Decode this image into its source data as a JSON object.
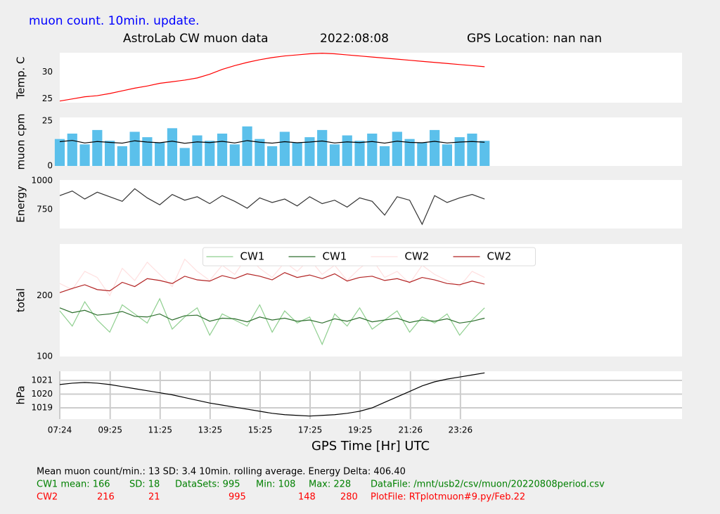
{
  "header": {
    "note": "muon count.  10min. update.",
    "title": "AstroLab CW muon data",
    "date": "2022:08:08",
    "location": "GPS Location: nan   nan"
  },
  "chart_data": [
    {
      "type": "line",
      "ylabel": "Temp. C",
      "xlim": [
        7.4,
        32.3
      ],
      "ylim": [
        24.3,
        33.6
      ],
      "yticks": [
        25,
        30
      ],
      "x": [
        7.4,
        7.9,
        8.4,
        8.9,
        9.4,
        9.9,
        10.4,
        10.9,
        11.4,
        11.9,
        12.4,
        12.9,
        13.4,
        13.9,
        14.4,
        14.9,
        15.4,
        15.9,
        16.4,
        16.9,
        17.4,
        17.9,
        18.4,
        18.9,
        19.4,
        19.9,
        20.4,
        20.9,
        21.4,
        21.9,
        22.4,
        22.9,
        23.4,
        23.9,
        24.4
      ],
      "series": [
        {
          "color": "#ff0000",
          "values": [
            24.6,
            25.0,
            25.4,
            25.6,
            26.0,
            26.5,
            27.0,
            27.4,
            27.9,
            28.2,
            28.5,
            28.9,
            29.6,
            30.5,
            31.2,
            31.8,
            32.3,
            32.7,
            33.0,
            33.2,
            33.4,
            33.5,
            33.4,
            33.2,
            33.0,
            32.8,
            32.6,
            32.4,
            32.2,
            32.0,
            31.8,
            31.6,
            31.4,
            31.2,
            31.0
          ]
        }
      ]
    },
    {
      "type": "bar",
      "ylabel": "muon cpm",
      "xlim": [
        7.4,
        32.3
      ],
      "ylim": [
        0,
        27
      ],
      "yticks": [
        0,
        25
      ],
      "x": [
        7.4,
        7.9,
        8.4,
        8.9,
        9.4,
        9.9,
        10.4,
        10.9,
        11.4,
        11.9,
        12.4,
        12.9,
        13.4,
        13.9,
        14.4,
        14.9,
        15.4,
        15.9,
        16.4,
        16.9,
        17.4,
        17.9,
        18.4,
        18.9,
        19.4,
        19.9,
        20.4,
        20.9,
        21.4,
        21.9,
        22.4,
        22.9,
        23.4,
        23.9,
        24.4
      ],
      "series": [
        {
          "type": "bar",
          "color": "#5bc0eb",
          "values": [
            15,
            18,
            12,
            20,
            14,
            11,
            19,
            16,
            13,
            21,
            10,
            17,
            14,
            18,
            12,
            22,
            15,
            11,
            19,
            13,
            16,
            20,
            12,
            17,
            14,
            18,
            11,
            19,
            15,
            13,
            20,
            12,
            16,
            18,
            14
          ]
        },
        {
          "type": "line",
          "color": "#000000",
          "values": [
            13.5,
            14.2,
            12.8,
            13.6,
            13.1,
            12.7,
            14.0,
            13.3,
            12.9,
            13.8,
            12.6,
            13.4,
            13.0,
            13.7,
            12.8,
            14.1,
            13.2,
            12.7,
            13.5,
            12.9,
            13.3,
            13.9,
            12.8,
            13.4,
            13.0,
            13.6,
            12.7,
            13.8,
            13.1,
            12.9,
            13.7,
            12.8,
            13.3,
            13.6,
            13.2
          ]
        }
      ]
    },
    {
      "type": "line",
      "ylabel": "Energy",
      "xlim": [
        7.4,
        32.3
      ],
      "ylim": [
        583,
        1006
      ],
      "yticks": [
        750,
        1000
      ],
      "x": [
        7.4,
        7.9,
        8.4,
        8.9,
        9.4,
        9.9,
        10.4,
        10.9,
        11.4,
        11.9,
        12.4,
        12.9,
        13.4,
        13.9,
        14.4,
        14.9,
        15.4,
        15.9,
        16.4,
        16.9,
        17.4,
        17.9,
        18.4,
        18.9,
        19.4,
        19.9,
        20.4,
        20.9,
        21.4,
        21.9,
        22.4,
        22.9,
        23.4,
        23.9,
        24.4
      ],
      "series": [
        {
          "color": "#333333",
          "values": [
            870,
            910,
            840,
            900,
            860,
            820,
            930,
            850,
            790,
            880,
            830,
            860,
            800,
            870,
            820,
            760,
            850,
            810,
            840,
            780,
            860,
            800,
            830,
            770,
            850,
            820,
            700,
            860,
            830,
            620,
            870,
            810,
            850,
            880,
            840
          ]
        }
      ]
    },
    {
      "type": "line",
      "ylabel": "total",
      "xlim": [
        7.4,
        32.3
      ],
      "ylim": [
        100,
        285
      ],
      "yticks": [
        100,
        200
      ],
      "legend": "upper center",
      "x": [
        7.4,
        7.9,
        8.4,
        8.9,
        9.4,
        9.9,
        10.4,
        10.9,
        11.4,
        11.9,
        12.4,
        12.9,
        13.4,
        13.9,
        14.4,
        14.9,
        15.4,
        15.9,
        16.4,
        16.9,
        17.4,
        17.9,
        18.4,
        18.9,
        19.4,
        19.9,
        20.4,
        20.9,
        21.4,
        21.9,
        22.4,
        22.9,
        23.4,
        23.9,
        24.4
      ],
      "series": [
        {
          "name": "CW1",
          "color": "#8fcf8f",
          "values": [
            175,
            150,
            190,
            160,
            140,
            185,
            170,
            155,
            195,
            145,
            165,
            180,
            135,
            170,
            160,
            150,
            185,
            140,
            175,
            155,
            165,
            120,
            170,
            150,
            180,
            145,
            160,
            175,
            140,
            165,
            155,
            170,
            135,
            160,
            180
          ]
        },
        {
          "name": "CW1",
          "color": "#2d6e2d",
          "values": [
            180,
            172,
            176,
            168,
            170,
            174,
            166,
            165,
            170,
            160,
            167,
            168,
            158,
            163,
            162,
            157,
            165,
            160,
            163,
            158,
            160,
            155,
            162,
            158,
            164,
            157,
            160,
            163,
            156,
            160,
            158,
            162,
            155,
            158,
            163
          ]
        },
        {
          "name": "CW2",
          "color": "#ffe0e0",
          "values": [
            220,
            210,
            240,
            230,
            200,
            245,
            225,
            255,
            235,
            215,
            260,
            240,
            225,
            250,
            235,
            265,
            245,
            230,
            255,
            240,
            260,
            235,
            250,
            225,
            245,
            260,
            230,
            240,
            220,
            250,
            235,
            225,
            215,
            240,
            230
          ]
        },
        {
          "name": "CW2",
          "color": "#b22222",
          "values": [
            205,
            212,
            218,
            210,
            208,
            222,
            215,
            228,
            225,
            220,
            232,
            226,
            224,
            233,
            228,
            236,
            232,
            226,
            238,
            230,
            234,
            228,
            236,
            224,
            230,
            232,
            225,
            228,
            222,
            230,
            226,
            220,
            218,
            224,
            219
          ]
        }
      ]
    },
    {
      "type": "line",
      "ylabel": "hPa",
      "xlabel": "GPS Time  [Hr] UTC",
      "grid": true,
      "xlim": [
        7.4,
        32.3
      ],
      "ylim": [
        1018.18,
        1021.67
      ],
      "yticks": [
        1019,
        1020,
        1021
      ],
      "xticks": [
        {
          "value": 7.4,
          "label": "07:24"
        },
        {
          "value": 9.417,
          "label": "09:25"
        },
        {
          "value": 11.417,
          "label": "11:25"
        },
        {
          "value": 13.417,
          "label": "13:25"
        },
        {
          "value": 15.417,
          "label": "15:25"
        },
        {
          "value": 17.417,
          "label": "17:25"
        },
        {
          "value": 19.417,
          "label": "19:25"
        },
        {
          "value": 21.433,
          "label": "21:26"
        },
        {
          "value": 23.433,
          "label": "23:26"
        }
      ],
      "x": [
        7.4,
        7.9,
        8.4,
        8.9,
        9.4,
        9.9,
        10.4,
        10.9,
        11.4,
        11.9,
        12.4,
        12.9,
        13.4,
        13.9,
        14.4,
        14.9,
        15.4,
        15.9,
        16.4,
        16.9,
        17.4,
        17.9,
        18.4,
        18.9,
        19.4,
        19.9,
        20.4,
        20.9,
        21.4,
        21.9,
        22.4,
        22.9,
        23.4,
        23.9,
        24.4
      ],
      "series": [
        {
          "color": "#000000",
          "values": [
            1020.7,
            1020.8,
            1020.85,
            1020.8,
            1020.7,
            1020.55,
            1020.4,
            1020.25,
            1020.1,
            1019.95,
            1019.75,
            1019.55,
            1019.35,
            1019.2,
            1019.05,
            1018.9,
            1018.75,
            1018.6,
            1018.5,
            1018.45,
            1018.4,
            1018.45,
            1018.5,
            1018.6,
            1018.75,
            1019.0,
            1019.4,
            1019.8,
            1020.2,
            1020.6,
            1020.9,
            1021.1,
            1021.25,
            1021.4,
            1021.55
          ]
        }
      ]
    }
  ],
  "footer": {
    "summary": "Mean muon count/min.: 13  SD: 3.4   10min. rolling average.    Energy Delta:  406.40",
    "cw1": [
      "CW1 mean: 166",
      "SD: 18",
      "DataSets: 995",
      "Min: 108",
      "Max: 228",
      "DataFile: /mnt/usb2/csv/muon/20220808period.csv"
    ],
    "cw2": [
      "CW2",
      "216",
      "21",
      "995",
      "148",
      "280",
      "PlotFile: RTplotmuon#9.py/Feb.22"
    ]
  }
}
